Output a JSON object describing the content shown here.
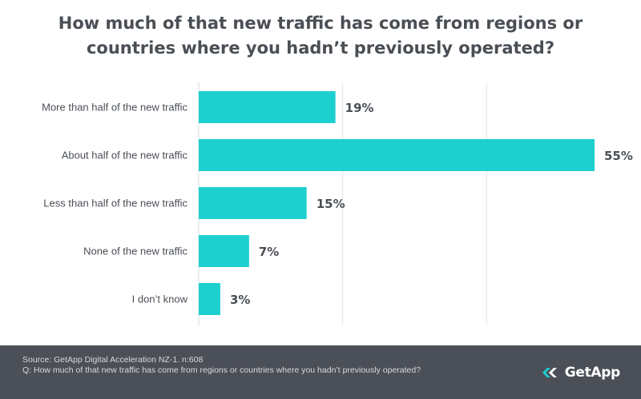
{
  "chart_data": {
    "type": "bar",
    "orientation": "horizontal",
    "title": "How much of that new traffic has come from regions or countries where you hadn’t previously operated?",
    "categories": [
      "More than half of the new traffic",
      "About half of the new traffic",
      "Less than half of the new traffic",
      "None of the new traffic",
      "I don’t know"
    ],
    "values": [
      19,
      55,
      15,
      7,
      3
    ],
    "value_labels": [
      "19%",
      "55%",
      "15%",
      "7%",
      "3%"
    ],
    "xlim": [
      0,
      55
    ],
    "gridlines": [
      20,
      40
    ],
    "grid": true,
    "xlabel": "",
    "ylabel": "",
    "bar_color": "#1ecfcf"
  },
  "footer": {
    "source": "Source: GetApp Digital Acceleration NZ-1. n:608",
    "question": "Q: How much of that new traffic has come from regions or countries where you hadn’t previously operated?"
  },
  "brand": {
    "name": "GetApp",
    "logo_icon": "getapp-logo-icon",
    "background": "#4b4f58",
    "accent": "#1ecfcf"
  }
}
